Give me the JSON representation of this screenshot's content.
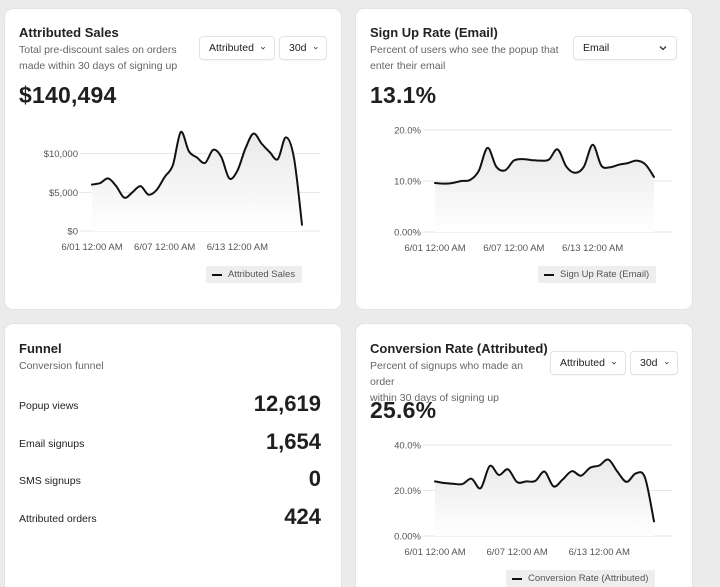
{
  "cards": {
    "attributed_sales": {
      "title": "Attributed Sales",
      "description_line1": "Total pre-discount sales on orders",
      "description_line2": "made within 30 days of signing up",
      "value": "$140,494",
      "dropdown_attribution": "Attributed",
      "dropdown_period": "30d"
    },
    "signup_rate": {
      "title": "Sign Up Rate (Email)",
      "description_line1": "Percent of users who see the popup that",
      "description_line2": "enter their email",
      "value": "13.1%",
      "dropdown_channel": "Email"
    },
    "funnel": {
      "title": "Funnel",
      "description": "Conversion funnel",
      "rows": [
        {
          "label": "Popup views",
          "value": "12,619"
        },
        {
          "label": "Email signups",
          "value": "1,654"
        },
        {
          "label": "SMS signups",
          "value": "0"
        },
        {
          "label": "Attributed orders",
          "value": "424"
        }
      ]
    },
    "conversion_rate": {
      "title": "Conversion Rate (Attributed)",
      "description_line1": "Percent of signups who made an order",
      "description_line2": "within 30 days of signing up",
      "value": "25.6%",
      "dropdown_attribution": "Attributed",
      "dropdown_period": "30d"
    }
  },
  "colors": {
    "line": "#111111",
    "grid": "#e6e6e6",
    "area_top": "#e9e9e9",
    "area_bottom": "#ffffff"
  },
  "chart_data": [
    {
      "type": "area",
      "title": "Attributed Sales",
      "series": [
        {
          "name": "Attributed Sales",
          "values": [
            6000,
            6200,
            6800,
            5800,
            4300,
            5000,
            5800,
            4700,
            5300,
            7000,
            8500,
            12800,
            10300,
            9500,
            8800,
            10500,
            9600,
            6800,
            7800,
            10700,
            12600,
            11300,
            10200,
            9300,
            12100,
            9500,
            800
          ]
        }
      ],
      "x_tick_labels": [
        "6/01 12:00 AM",
        "6/07 12:00 AM",
        "6/13 12:00 AM"
      ],
      "x_tick_index": [
        0,
        9,
        18
      ],
      "y_ticks": [
        0,
        5000,
        10000
      ],
      "y_tick_labels": [
        "$0",
        "$5,000",
        "$10,000"
      ],
      "ylim": [
        0,
        15000
      ],
      "legend": "Attributed Sales"
    },
    {
      "type": "area",
      "title": "Sign Up Rate (Email)",
      "series": [
        {
          "name": "Sign Up Rate (Email)",
          "values": [
            9.6,
            9.5,
            9.6,
            10.0,
            10.2,
            12.0,
            16.5,
            12.8,
            12.1,
            14.0,
            14.3,
            14.1,
            14.0,
            14.2,
            16.2,
            12.8,
            11.6,
            12.8,
            17.1,
            13.0,
            12.7,
            13.2,
            13.5,
            14.0,
            13.3,
            10.8
          ]
        }
      ],
      "x_tick_labels": [
        "6/01 12:00 AM",
        "6/07 12:00 AM",
        "6/13 12:00 AM"
      ],
      "x_tick_index": [
        0,
        9,
        18
      ],
      "y_ticks": [
        0,
        10,
        20
      ],
      "y_tick_labels": [
        "0.00%",
        "10.0%",
        "20.0%"
      ],
      "ylim": [
        0,
        20
      ],
      "legend": "Sign Up Rate (Email)"
    },
    {
      "type": "area",
      "title": "Conversion Rate (Attributed)",
      "series": [
        {
          "name": "Conversion Rate (Attributed)",
          "values": [
            24.0,
            23.3,
            23.0,
            22.8,
            25.2,
            21.0,
            30.8,
            26.8,
            29.3,
            23.7,
            24.0,
            24.2,
            28.3,
            21.8,
            24.9,
            28.5,
            26.5,
            30.0,
            31.0,
            33.6,
            28.2,
            23.8,
            27.5,
            25.8,
            6.4
          ]
        }
      ],
      "x_tick_labels": [
        "6/01 12:00 AM",
        "6/07 12:00 AM",
        "6/13 12:00 AM"
      ],
      "x_tick_index": [
        0,
        9,
        18
      ],
      "y_ticks": [
        0,
        20,
        40
      ],
      "y_tick_labels": [
        "0.00%",
        "20.0%",
        "40.0%"
      ],
      "ylim": [
        0,
        40
      ],
      "legend": "Conversion Rate (Attributed)"
    }
  ]
}
